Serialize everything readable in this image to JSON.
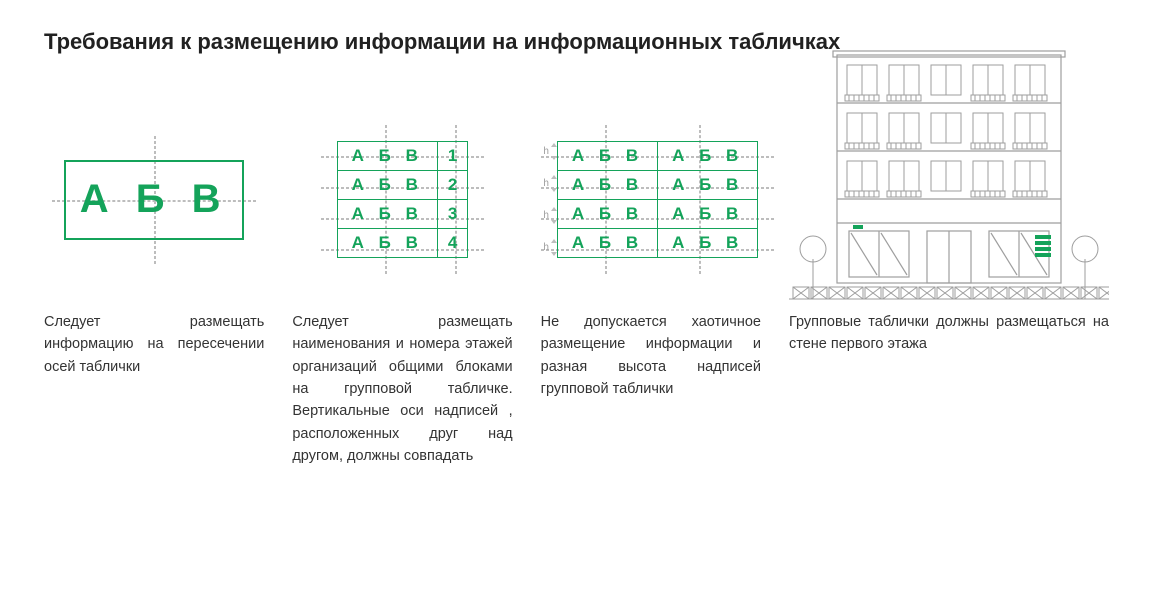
{
  "title": "Требования к размещению информации на информационных табличках",
  "accent_color": "#14a35a",
  "guide_color": "#bdbdbd",
  "text_color": "#333333",
  "col1": {
    "label": "А Б В",
    "caption": "Следует размещать информацию на пересечении осей таблички"
  },
  "col2": {
    "rows": [
      {
        "label": "А Б В",
        "num": "1"
      },
      {
        "label": "А Б В",
        "num": "2"
      },
      {
        "label": "А Б В",
        "num": "3"
      },
      {
        "label": "А Б В",
        "num": "4"
      }
    ],
    "caption": "Следует размещать наименования и номера этажей организаций общими блоками на групповой табличке. Вертикальные оси надписей , расположенных друг над другом, должны совпадать"
  },
  "col3": {
    "h_label": "h",
    "rows": [
      {
        "a": "А Б В",
        "b": "А Б В"
      },
      {
        "a": "А Б В",
        "b": "А Б В"
      },
      {
        "a": "А Б В",
        "b": "А Б В"
      },
      {
        "a": "А Б В",
        "b": "А Б В"
      }
    ],
    "caption": "Не допускается хаотичное размещение информации и разная высота надписей групповой таблички"
  },
  "col4": {
    "caption": "Групповые таблички должны размещаться на стене первого этажа",
    "building": {
      "stroke": "#9e9e9e",
      "stroke_width": 1.2,
      "floors": 4,
      "windows_per_floor": 5,
      "plaque_color": "#14a35a"
    }
  }
}
